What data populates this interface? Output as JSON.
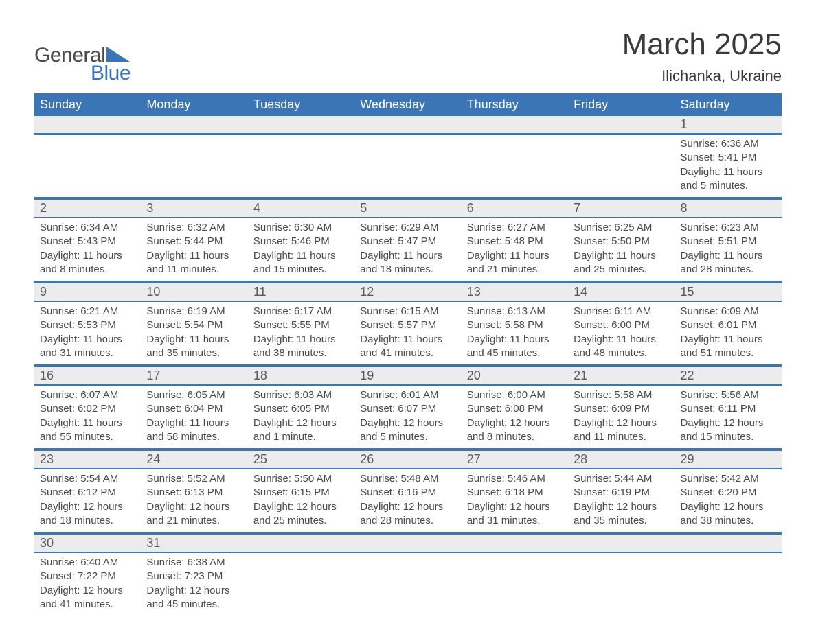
{
  "logo": {
    "word1": "General",
    "word2": "Blue",
    "accent_color": "#3a76b5"
  },
  "title": "March 2025",
  "location": "Ilichanka, Ukraine",
  "header_bg": "#3a76b5",
  "header_fg": "#ffffff",
  "daynum_bg": "#ececec",
  "text_color": "#4a4a4a",
  "row_border": "#3a76b5",
  "columns": [
    "Sunday",
    "Monday",
    "Tuesday",
    "Wednesday",
    "Thursday",
    "Friday",
    "Saturday"
  ],
  "weeks": [
    [
      null,
      null,
      null,
      null,
      null,
      null,
      {
        "n": "1",
        "sunrise": "6:36 AM",
        "sunset": "5:41 PM",
        "daylight": "11 hours and 5 minutes."
      }
    ],
    [
      {
        "n": "2",
        "sunrise": "6:34 AM",
        "sunset": "5:43 PM",
        "daylight": "11 hours and 8 minutes."
      },
      {
        "n": "3",
        "sunrise": "6:32 AM",
        "sunset": "5:44 PM",
        "daylight": "11 hours and 11 minutes."
      },
      {
        "n": "4",
        "sunrise": "6:30 AM",
        "sunset": "5:46 PM",
        "daylight": "11 hours and 15 minutes."
      },
      {
        "n": "5",
        "sunrise": "6:29 AM",
        "sunset": "5:47 PM",
        "daylight": "11 hours and 18 minutes."
      },
      {
        "n": "6",
        "sunrise": "6:27 AM",
        "sunset": "5:48 PM",
        "daylight": "11 hours and 21 minutes."
      },
      {
        "n": "7",
        "sunrise": "6:25 AM",
        "sunset": "5:50 PM",
        "daylight": "11 hours and 25 minutes."
      },
      {
        "n": "8",
        "sunrise": "6:23 AM",
        "sunset": "5:51 PM",
        "daylight": "11 hours and 28 minutes."
      }
    ],
    [
      {
        "n": "9",
        "sunrise": "6:21 AM",
        "sunset": "5:53 PM",
        "daylight": "11 hours and 31 minutes."
      },
      {
        "n": "10",
        "sunrise": "6:19 AM",
        "sunset": "5:54 PM",
        "daylight": "11 hours and 35 minutes."
      },
      {
        "n": "11",
        "sunrise": "6:17 AM",
        "sunset": "5:55 PM",
        "daylight": "11 hours and 38 minutes."
      },
      {
        "n": "12",
        "sunrise": "6:15 AM",
        "sunset": "5:57 PM",
        "daylight": "11 hours and 41 minutes."
      },
      {
        "n": "13",
        "sunrise": "6:13 AM",
        "sunset": "5:58 PM",
        "daylight": "11 hours and 45 minutes."
      },
      {
        "n": "14",
        "sunrise": "6:11 AM",
        "sunset": "6:00 PM",
        "daylight": "11 hours and 48 minutes."
      },
      {
        "n": "15",
        "sunrise": "6:09 AM",
        "sunset": "6:01 PM",
        "daylight": "11 hours and 51 minutes."
      }
    ],
    [
      {
        "n": "16",
        "sunrise": "6:07 AM",
        "sunset": "6:02 PM",
        "daylight": "11 hours and 55 minutes."
      },
      {
        "n": "17",
        "sunrise": "6:05 AM",
        "sunset": "6:04 PM",
        "daylight": "11 hours and 58 minutes."
      },
      {
        "n": "18",
        "sunrise": "6:03 AM",
        "sunset": "6:05 PM",
        "daylight": "12 hours and 1 minute."
      },
      {
        "n": "19",
        "sunrise": "6:01 AM",
        "sunset": "6:07 PM",
        "daylight": "12 hours and 5 minutes."
      },
      {
        "n": "20",
        "sunrise": "6:00 AM",
        "sunset": "6:08 PM",
        "daylight": "12 hours and 8 minutes."
      },
      {
        "n": "21",
        "sunrise": "5:58 AM",
        "sunset": "6:09 PM",
        "daylight": "12 hours and 11 minutes."
      },
      {
        "n": "22",
        "sunrise": "5:56 AM",
        "sunset": "6:11 PM",
        "daylight": "12 hours and 15 minutes."
      }
    ],
    [
      {
        "n": "23",
        "sunrise": "5:54 AM",
        "sunset": "6:12 PM",
        "daylight": "12 hours and 18 minutes."
      },
      {
        "n": "24",
        "sunrise": "5:52 AM",
        "sunset": "6:13 PM",
        "daylight": "12 hours and 21 minutes."
      },
      {
        "n": "25",
        "sunrise": "5:50 AM",
        "sunset": "6:15 PM",
        "daylight": "12 hours and 25 minutes."
      },
      {
        "n": "26",
        "sunrise": "5:48 AM",
        "sunset": "6:16 PM",
        "daylight": "12 hours and 28 minutes."
      },
      {
        "n": "27",
        "sunrise": "5:46 AM",
        "sunset": "6:18 PM",
        "daylight": "12 hours and 31 minutes."
      },
      {
        "n": "28",
        "sunrise": "5:44 AM",
        "sunset": "6:19 PM",
        "daylight": "12 hours and 35 minutes."
      },
      {
        "n": "29",
        "sunrise": "5:42 AM",
        "sunset": "6:20 PM",
        "daylight": "12 hours and 38 minutes."
      }
    ],
    [
      {
        "n": "30",
        "sunrise": "6:40 AM",
        "sunset": "7:22 PM",
        "daylight": "12 hours and 41 minutes."
      },
      {
        "n": "31",
        "sunrise": "6:38 AM",
        "sunset": "7:23 PM",
        "daylight": "12 hours and 45 minutes."
      },
      null,
      null,
      null,
      null,
      null
    ]
  ],
  "labels": {
    "sunrise": "Sunrise: ",
    "sunset": "Sunset: ",
    "daylight": "Daylight: "
  }
}
